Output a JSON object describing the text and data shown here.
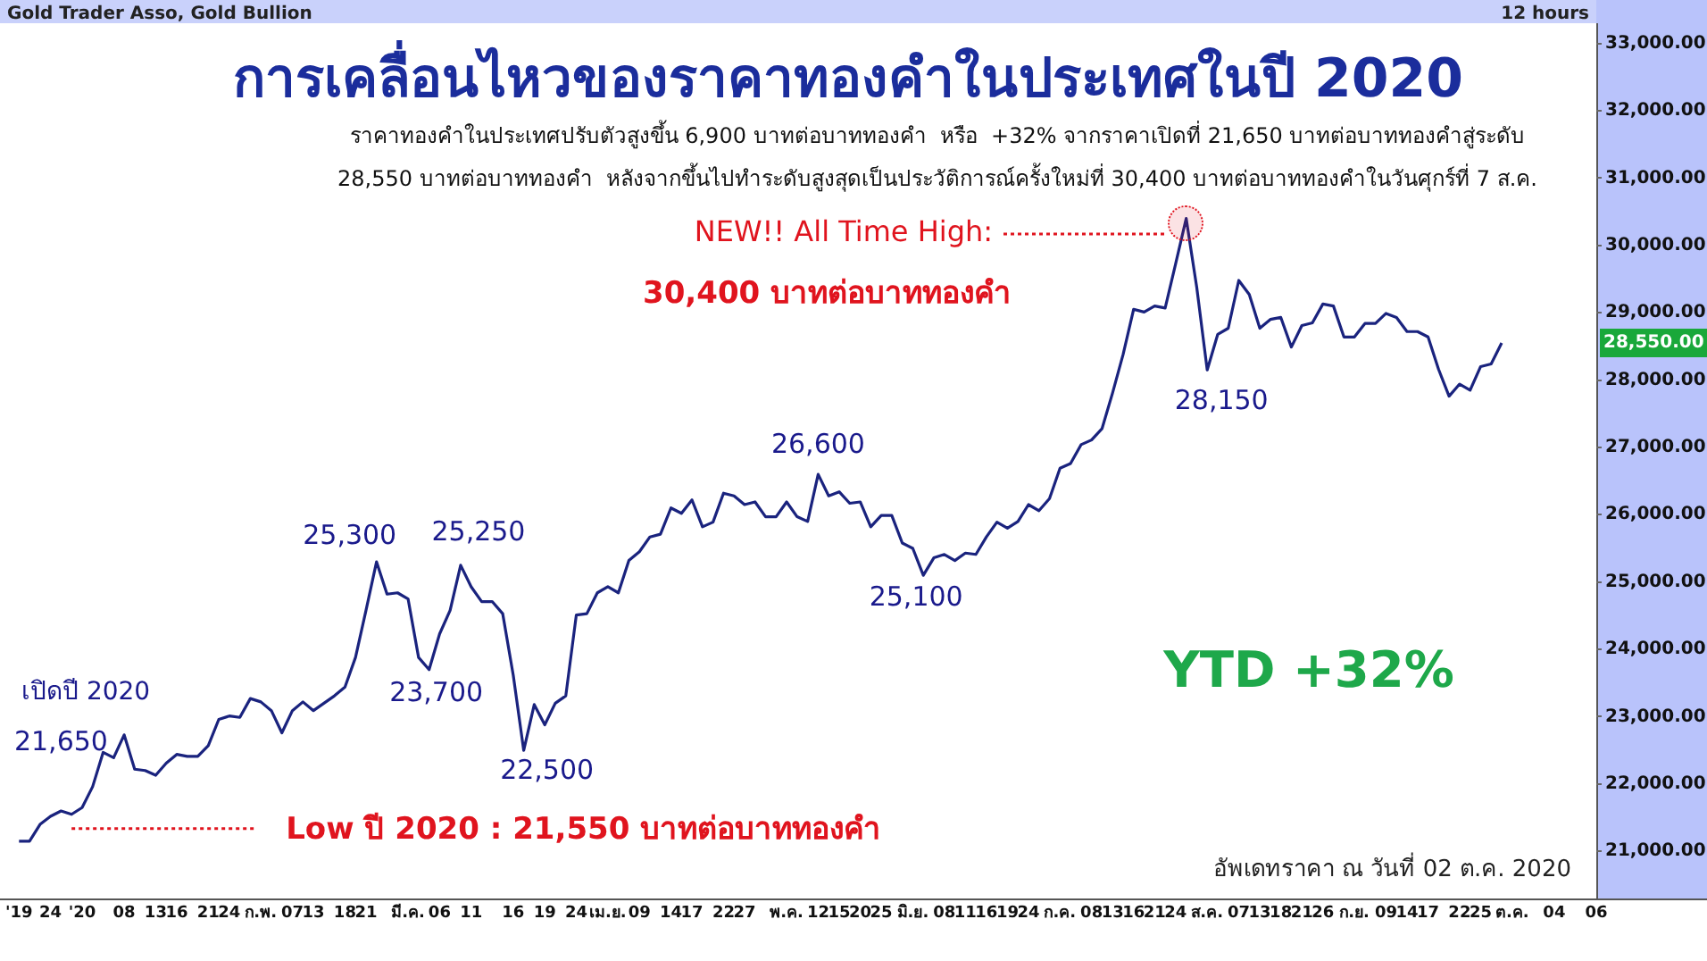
{
  "chart_data": {
    "type": "line",
    "title": "การเคลื่อนไหวของราคาทองคำในประเทศในปี 2020",
    "subtitle": "ราคาทองคำในประเทศปรับตัวสูงขึ้น 6,900 บาทต่อบาททองคำ  หรือ  +32% จากราคาเปิดที่ 21,650 บาทต่อบาททองคำสู่ระดับ\n28,550 บาทต่อบาททองคำ  หลังจากขึ้นไปทำระดับสูงสุดเป็นประวัติการณ์ครั้งใหม่ที่ 30,400 บาทต่อบาททองคำในวันศุกร์ที่ 7 ส.ค.",
    "color": "#1a237e",
    "categories": [
      "'19",
      null,
      null,
      "24",
      null,
      null,
      "'20",
      null,
      null,
      null,
      "08",
      null,
      null,
      "13",
      null,
      "16",
      null,
      null,
      "21",
      null,
      "24",
      null,
      null,
      "ก.พ.",
      null,
      null,
      "07",
      null,
      "13",
      null,
      null,
      "18",
      null,
      "21",
      null,
      null,
      null,
      "มี.ค.",
      null,
      null,
      "06",
      null,
      null,
      "11",
      null,
      null,
      null,
      "16",
      null,
      null,
      "19",
      null,
      null,
      "24",
      null,
      null,
      "เม.ย.",
      null,
      null,
      "09",
      null,
      null,
      "14",
      null,
      "17",
      null,
      null,
      "22",
      null,
      "27",
      null,
      null,
      null,
      "พ.ค.",
      null,
      null,
      "12",
      null,
      "15",
      null,
      "20",
      null,
      "25",
      null,
      null,
      "มิ.ย.",
      null,
      null,
      "08",
      null,
      "11",
      null,
      "16",
      null,
      "19",
      null,
      "24",
      null,
      null,
      "ก.ค.",
      null,
      null,
      "08",
      null,
      "13",
      null,
      "16",
      null,
      "21",
      null,
      "24",
      null,
      null,
      "ส.ค.",
      null,
      null,
      "07",
      null,
      "13",
      null,
      "18",
      null,
      "21",
      null,
      "26",
      null,
      null,
      "ก.ย.",
      null,
      null,
      "09",
      null,
      "14",
      null,
      "17",
      null,
      null,
      "22",
      null,
      "25",
      null,
      null,
      "ต.ค.",
      null,
      null,
      null,
      "04",
      null,
      null,
      null,
      "06"
    ],
    "values": [
      21150,
      21150,
      21400,
      21520,
      21600,
      21550,
      21650,
      21960,
      22470,
      22390,
      22730,
      22220,
      22200,
      22130,
      22310,
      22440,
      22410,
      22410,
      22570,
      22960,
      23010,
      22990,
      23270,
      23220,
      23090,
      22760,
      23090,
      23220,
      23090,
      23200,
      23310,
      23440,
      23880,
      24580,
      25300,
      24820,
      24840,
      24750,
      23880,
      23700,
      24230,
      24580,
      25250,
      24930,
      24710,
      24710,
      24530,
      23620,
      22500,
      23180,
      22880,
      23200,
      23310,
      24510,
      24530,
      24840,
      24930,
      24840,
      25320,
      25450,
      25670,
      25710,
      26100,
      26020,
      26220,
      25820,
      25890,
      26320,
      26280,
      26150,
      26190,
      25970,
      25970,
      26190,
      25970,
      25900,
      26600,
      26280,
      26340,
      26170,
      26190,
      25820,
      25990,
      25990,
      25580,
      25500,
      25100,
      25360,
      25410,
      25320,
      25430,
      25410,
      25670,
      25890,
      25800,
      25900,
      26150,
      26060,
      26240,
      26690,
      26760,
      27040,
      27110,
      27280,
      27810,
      28380,
      29050,
      29010,
      29100,
      29070,
      29730,
      30400,
      29380,
      28150,
      28680,
      28770,
      29480,
      29270,
      28770,
      28900,
      28930,
      28490,
      28810,
      28850,
      29130,
      29100,
      28640,
      28640,
      28840,
      28840,
      28990,
      28930,
      28720,
      28720,
      28640,
      28160,
      27760,
      27940,
      27850,
      28200,
      28240,
      28550,
      null,
      null,
      null,
      null,
      null,
      null,
      null,
      null,
      null
    ],
    "ylim": [
      20300,
      33300
    ],
    "yticks": [
      {
        "value": 21000,
        "label": "21,000.00"
      },
      {
        "value": 22000,
        "label": "22,000.00"
      },
      {
        "value": 23000,
        "label": "23,000.00"
      },
      {
        "value": 24000,
        "label": "24,000.00"
      },
      {
        "value": 25000,
        "label": "25,000.00"
      },
      {
        "value": 26000,
        "label": "26,000.00"
      },
      {
        "value": 27000,
        "label": "27,000.00"
      },
      {
        "value": 28000,
        "label": "28,000.00"
      },
      {
        "value": 29000,
        "label": "29,000.00"
      },
      {
        "value": 30000,
        "label": "30,000.00"
      },
      {
        "value": 31000,
        "label": "31,000.00"
      },
      {
        "value": 32000,
        "label": "32,000.00"
      },
      {
        "value": 33000,
        "label": "33,000.00"
      }
    ],
    "annotations": [
      "Gold Trader Asso, Gold Bullion",
      "12 hours",
      "เปิดปี 2020",
      "21,650",
      "25,300",
      "23,700",
      "25,250",
      "22,500",
      "26,600",
      "25,100",
      "NEW!! All Time High:",
      "30,400 บาทต่อบาททองคำ",
      "28,150",
      "YTD +32%",
      "อัพเดทราคา ณ วันที่ 02 ต.ค. 2020",
      "Low ปี 2020 : 21,550 บาทต่อบาททองคำ",
      "28,550.00"
    ]
  }
}
